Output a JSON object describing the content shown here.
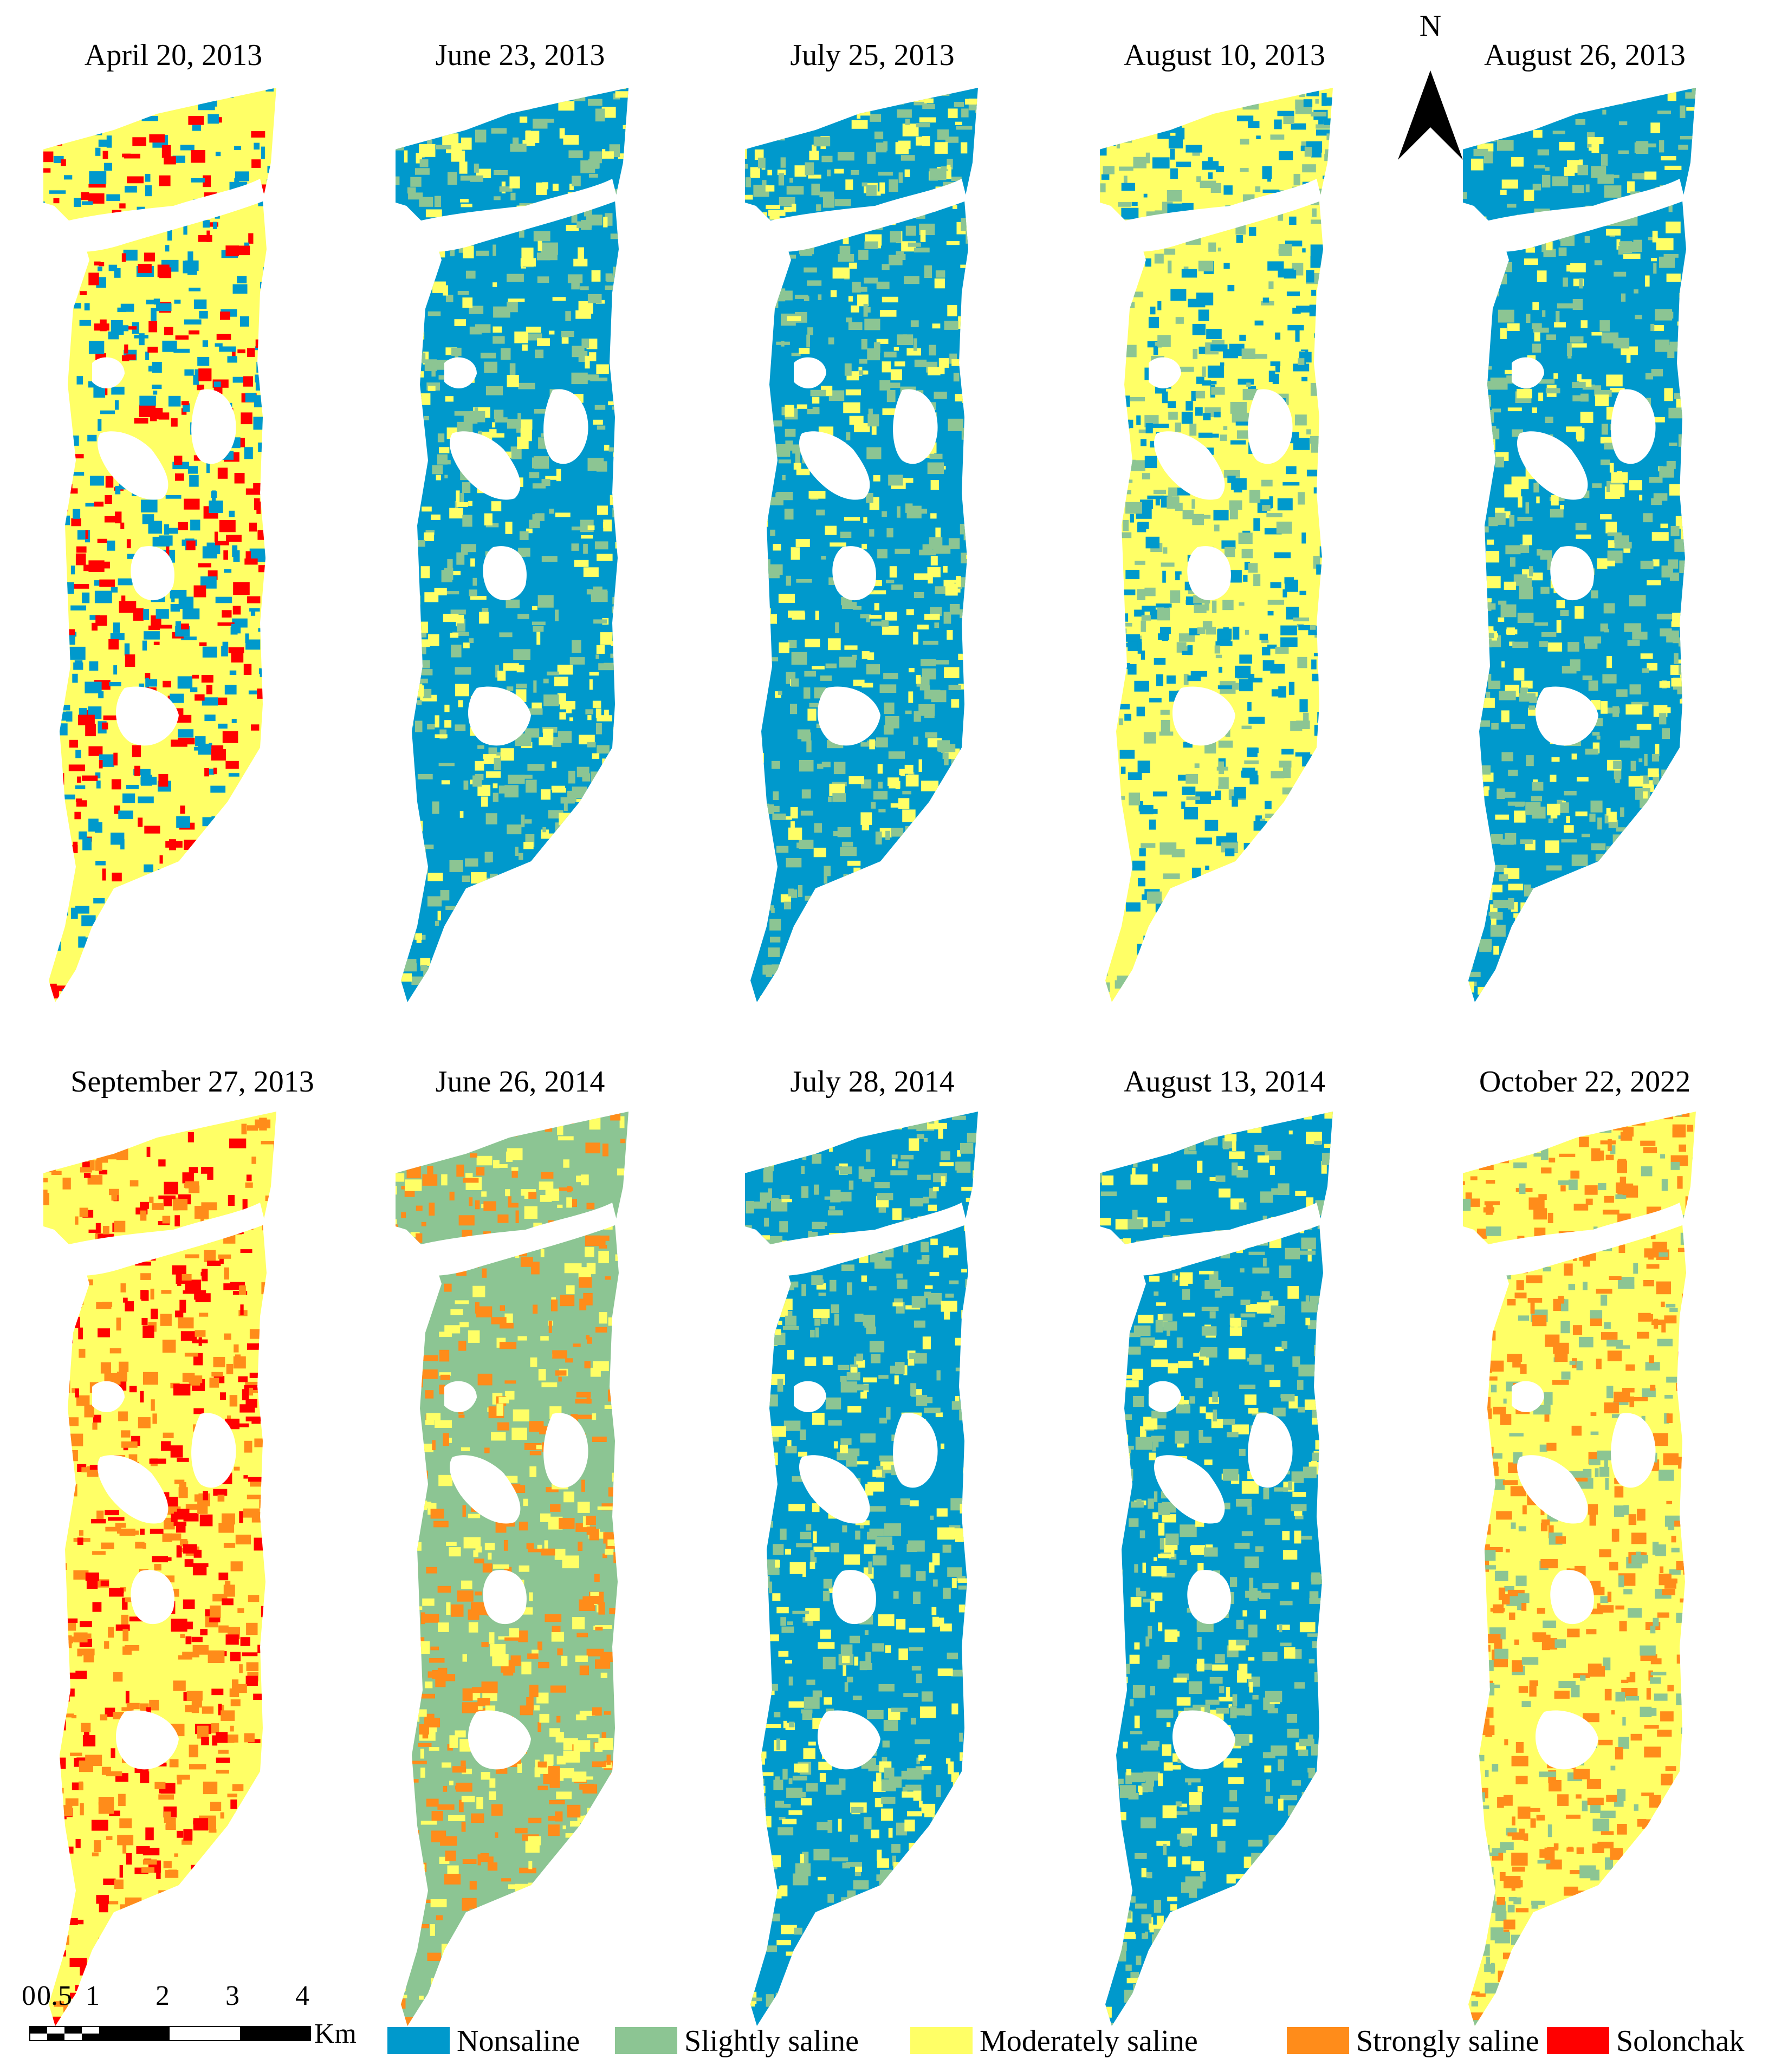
{
  "figure": {
    "panels": [
      {
        "title": "April 20, 2013",
        "dominant": [
          "moderate",
          "nonsaline",
          "solonchak"
        ]
      },
      {
        "title": "June 23, 2013",
        "dominant": [
          "nonsaline",
          "slight",
          "moderate"
        ]
      },
      {
        "title": "July 25, 2013",
        "dominant": [
          "nonsaline",
          "slight",
          "moderate"
        ]
      },
      {
        "title": "August 10, 2013",
        "dominant": [
          "moderate",
          "nonsaline",
          "slight"
        ]
      },
      {
        "title": "August 26, 2013",
        "dominant": [
          "nonsaline",
          "slight",
          "moderate"
        ]
      },
      {
        "title": "September 27, 2013",
        "dominant": [
          "moderate",
          "strong",
          "solonchak"
        ]
      },
      {
        "title": "June 26, 2014",
        "dominant": [
          "slight",
          "strong",
          "moderate"
        ]
      },
      {
        "title": "July 28, 2014",
        "dominant": [
          "nonsaline",
          "slight",
          "moderate"
        ]
      },
      {
        "title": "August 13, 2014",
        "dominant": [
          "nonsaline",
          "slight",
          "moderate"
        ]
      },
      {
        "title": "October 22, 2022",
        "dominant": [
          "moderate",
          "strong",
          "slight"
        ]
      }
    ],
    "north_label": "N",
    "scalebar": {
      "tick_labels": [
        "0",
        "0.5",
        "1",
        "2",
        "3",
        "4"
      ],
      "unit": "Km"
    },
    "legend": [
      {
        "key": "nonsaline",
        "label": "Nonsaline",
        "color": "#0099CC"
      },
      {
        "key": "slight",
        "label": "Slightly saline",
        "color": "#8CC593"
      },
      {
        "key": "moderate",
        "label": "Moderately saline",
        "color": "#FFFF66"
      },
      {
        "key": "strong",
        "label": "Strongly saline",
        "color": "#FF8C1A"
      },
      {
        "key": "solonchak",
        "label": "Solonchak",
        "color": "#FF0000"
      }
    ]
  }
}
